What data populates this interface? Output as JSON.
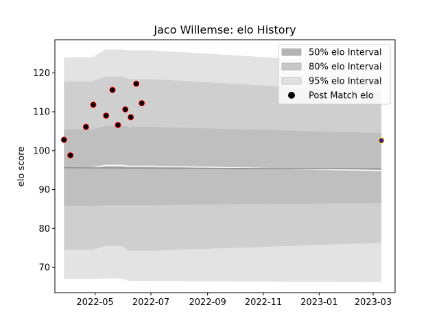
{
  "chart_data": {
    "type": "line",
    "title": "Jaco Willemse: elo History",
    "xlabel": "",
    "ylabel": "elo score",
    "xlim": [
      "2022-03-18",
      "2023-03-25"
    ],
    "ylim": [
      63.5,
      128.5
    ],
    "x_ticks": [
      {
        "date": "2022-05-01",
        "label": "2022-05"
      },
      {
        "date": "2022-07-01",
        "label": "2022-07"
      },
      {
        "date": "2022-09-01",
        "label": "2022-09"
      },
      {
        "date": "2022-11-01",
        "label": "2022-11"
      },
      {
        "date": "2023-01-01",
        "label": "2023-01"
      },
      {
        "date": "2023-03-01",
        "label": "2023-03"
      }
    ],
    "y_ticks": [
      70,
      80,
      90,
      100,
      110,
      120
    ],
    "grid": false,
    "legend_position": "upper right",
    "legend": [
      {
        "label": "50% elo Interval",
        "kind": "band",
        "color": "#b4b4b4"
      },
      {
        "label": "80% elo Interval",
        "kind": "band",
        "color": "#c8c8c8"
      },
      {
        "label": "95% elo Interval",
        "kind": "band",
        "color": "#e2e2e2"
      },
      {
        "label": "Post Match elo",
        "kind": "marker",
        "color": "#000000"
      }
    ],
    "bands": [
      {
        "name": "95% elo Interval",
        "color": "#e3e3e3",
        "points": [
          {
            "x": "2022-03-28",
            "low": 67.0,
            "high": 124.0
          },
          {
            "x": "2022-04-28",
            "low": 67.0,
            "high": 124.0
          },
          {
            "x": "2022-05-12",
            "low": 67.1,
            "high": 126.0
          },
          {
            "x": "2022-05-30",
            "low": 67.1,
            "high": 126.0
          },
          {
            "x": "2022-06-07",
            "low": 66.5,
            "high": 125.8
          },
          {
            "x": "2022-07-01",
            "low": 66.5,
            "high": 125.8
          },
          {
            "x": "2023-03-10",
            "low": 66.2,
            "high": 122.2
          }
        ]
      },
      {
        "name": "80% elo Interval",
        "color": "#cfcfcf",
        "points": [
          {
            "x": "2022-03-28",
            "low": 74.5,
            "high": 117.8
          },
          {
            "x": "2022-04-28",
            "low": 74.5,
            "high": 117.8
          },
          {
            "x": "2022-05-12",
            "low": 75.5,
            "high": 119.0
          },
          {
            "x": "2022-05-30",
            "low": 75.5,
            "high": 119.0
          },
          {
            "x": "2022-06-07",
            "low": 74.3,
            "high": 118.4
          },
          {
            "x": "2022-07-01",
            "low": 74.3,
            "high": 118.4
          },
          {
            "x": "2023-03-10",
            "low": 76.3,
            "high": 115.0
          }
        ]
      },
      {
        "name": "50% elo Interval",
        "color": "#bfbfbf",
        "points": [
          {
            "x": "2022-03-28",
            "low": 85.8,
            "high": 105.5
          },
          {
            "x": "2022-04-28",
            "low": 85.8,
            "high": 105.5
          },
          {
            "x": "2022-05-12",
            "low": 86.0,
            "high": 106.3
          },
          {
            "x": "2022-05-30",
            "low": 86.0,
            "high": 106.3
          },
          {
            "x": "2022-06-07",
            "low": 86.0,
            "high": 106.1
          },
          {
            "x": "2022-07-01",
            "low": 86.0,
            "high": 106.1
          },
          {
            "x": "2023-03-10",
            "low": 86.6,
            "high": 104.5
          }
        ]
      }
    ],
    "lines": [
      {
        "color": "#ffffff",
        "values": [
          {
            "x": "2022-03-28",
            "y": 95.6
          },
          {
            "x": "2022-04-28",
            "y": 95.6
          },
          {
            "x": "2022-05-12",
            "y": 96.2
          },
          {
            "x": "2022-05-30",
            "y": 96.2
          },
          {
            "x": "2022-06-07",
            "y": 96.0
          },
          {
            "x": "2022-07-01",
            "y": 96.0
          },
          {
            "x": "2023-03-10",
            "y": 94.9
          }
        ]
      },
      {
        "color": "#8c8c8c",
        "values": [
          {
            "x": "2022-03-28",
            "y": 95.6
          },
          {
            "x": "2023-03-10",
            "y": 95.3
          }
        ]
      }
    ],
    "series": [
      {
        "name": "Post Match elo",
        "fill": "#000000",
        "edge": "#ff0000",
        "points": [
          {
            "x": "2022-03-28",
            "y": 102.8
          },
          {
            "x": "2022-04-04",
            "y": 98.8
          },
          {
            "x": "2022-04-21",
            "y": 106.1
          },
          {
            "x": "2022-04-29",
            "y": 111.8
          },
          {
            "x": "2022-05-13",
            "y": 109.0
          },
          {
            "x": "2022-05-20",
            "y": 115.6
          },
          {
            "x": "2022-05-26",
            "y": 106.6
          },
          {
            "x": "2022-06-03",
            "y": 110.6
          },
          {
            "x": "2022-06-09",
            "y": 108.6
          },
          {
            "x": "2022-06-15",
            "y": 117.2
          },
          {
            "x": "2022-06-21",
            "y": 112.2
          }
        ]
      },
      {
        "fill": "#4a1486",
        "edge": "#ffff00",
        "points": [
          {
            "x": "2023-03-10",
            "y": 102.6
          }
        ]
      }
    ]
  }
}
